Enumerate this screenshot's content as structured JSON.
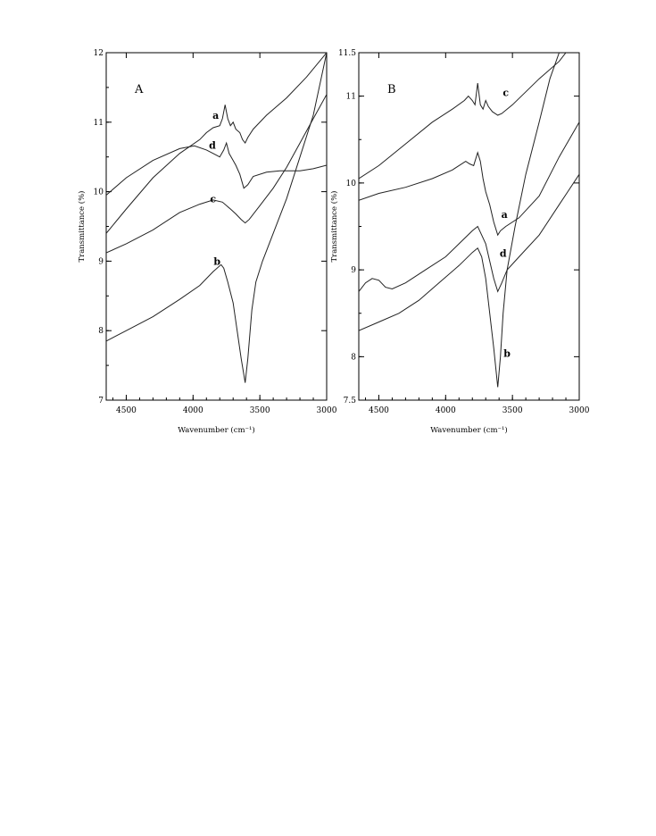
{
  "chart_data": [
    {
      "type": "line",
      "panel_label": "A",
      "xlabel": "Wavenumber (cm⁻¹)",
      "ylabel": "Transmittance (%)",
      "xlim": [
        4650,
        3000
      ],
      "ylim": [
        7,
        12
      ],
      "x_ticks": [
        4500,
        4000,
        3500,
        3000
      ],
      "y_ticks": [
        7,
        8,
        9,
        10,
        11,
        12
      ],
      "grid": false,
      "series": [
        {
          "name": "a",
          "label_at": [
            3830,
            11.05
          ],
          "points": [
            [
              4650,
              9.4
            ],
            [
              4500,
              9.75
            ],
            [
              4300,
              10.2
            ],
            [
              4100,
              10.55
            ],
            [
              3950,
              10.75
            ],
            [
              3900,
              10.85
            ],
            [
              3850,
              10.92
            ],
            [
              3800,
              10.95
            ],
            [
              3780,
              11.05
            ],
            [
              3760,
              11.25
            ],
            [
              3740,
              11.05
            ],
            [
              3720,
              10.95
            ],
            [
              3700,
              11.0
            ],
            [
              3680,
              10.9
            ],
            [
              3650,
              10.85
            ],
            [
              3630,
              10.75
            ],
            [
              3610,
              10.7
            ],
            [
              3590,
              10.78
            ],
            [
              3550,
              10.9
            ],
            [
              3450,
              11.1
            ],
            [
              3300,
              11.35
            ],
            [
              3150,
              11.65
            ],
            [
              3000,
              12.0
            ]
          ]
        },
        {
          "name": "b",
          "label_at": [
            3820,
            8.95
          ],
          "points": [
            [
              4650,
              7.85
            ],
            [
              4500,
              8.0
            ],
            [
              4300,
              8.2
            ],
            [
              4100,
              8.45
            ],
            [
              3950,
              8.65
            ],
            [
              3850,
              8.85
            ],
            [
              3790,
              8.95
            ],
            [
              3770,
              8.9
            ],
            [
              3740,
              8.7
            ],
            [
              3700,
              8.4
            ],
            [
              3670,
              8.0
            ],
            [
              3640,
              7.6
            ],
            [
              3610,
              7.25
            ],
            [
              3590,
              7.6
            ],
            [
              3560,
              8.3
            ],
            [
              3530,
              8.7
            ],
            [
              3480,
              9.0
            ],
            [
              3400,
              9.4
            ],
            [
              3300,
              9.9
            ],
            [
              3200,
              10.5
            ],
            [
              3100,
              11.1
            ],
            [
              3000,
              12.0
            ]
          ]
        },
        {
          "name": "c",
          "label_at": [
            3850,
            9.85
          ],
          "points": [
            [
              4650,
              9.12
            ],
            [
              4500,
              9.25
            ],
            [
              4300,
              9.45
            ],
            [
              4100,
              9.7
            ],
            [
              3950,
              9.82
            ],
            [
              3850,
              9.88
            ],
            [
              3780,
              9.85
            ],
            [
              3720,
              9.75
            ],
            [
              3680,
              9.68
            ],
            [
              3640,
              9.6
            ],
            [
              3610,
              9.55
            ],
            [
              3580,
              9.6
            ],
            [
              3500,
              9.8
            ],
            [
              3400,
              10.05
            ],
            [
              3300,
              10.35
            ],
            [
              3200,
              10.7
            ],
            [
              3100,
              11.05
            ],
            [
              3000,
              11.4
            ]
          ]
        },
        {
          "name": "d",
          "label_at": [
            3855,
            10.62
          ],
          "points": [
            [
              4650,
              9.95
            ],
            [
              4500,
              10.2
            ],
            [
              4300,
              10.45
            ],
            [
              4100,
              10.62
            ],
            [
              3990,
              10.66
            ],
            [
              3900,
              10.6
            ],
            [
              3850,
              10.55
            ],
            [
              3800,
              10.5
            ],
            [
              3770,
              10.6
            ],
            [
              3750,
              10.7
            ],
            [
              3730,
              10.55
            ],
            [
              3700,
              10.45
            ],
            [
              3680,
              10.38
            ],
            [
              3650,
              10.25
            ],
            [
              3620,
              10.05
            ],
            [
              3590,
              10.1
            ],
            [
              3550,
              10.22
            ],
            [
              3450,
              10.28
            ],
            [
              3350,
              10.3
            ],
            [
              3200,
              10.3
            ],
            [
              3100,
              10.33
            ],
            [
              3000,
              10.38
            ]
          ]
        }
      ]
    },
    {
      "type": "line",
      "panel_label": "B",
      "xlabel": "Wavenumber (cm⁻¹)",
      "ylabel": "Transmittance (%)",
      "xlim": [
        4650,
        3000
      ],
      "ylim": [
        7.5,
        11.5
      ],
      "x_ticks": [
        4500,
        4000,
        3500,
        3000
      ],
      "y_ticks": [
        7.5,
        8,
        9,
        10,
        11,
        11.5
      ],
      "grid": false,
      "series": [
        {
          "name": "a",
          "label_at": [
            3560,
            9.6
          ],
          "points": [
            [
              4650,
              9.8
            ],
            [
              4500,
              9.88
            ],
            [
              4300,
              9.95
            ],
            [
              4100,
              10.05
            ],
            [
              3950,
              10.15
            ],
            [
              3850,
              10.25
            ],
            [
              3820,
              10.22
            ],
            [
              3790,
              10.2
            ],
            [
              3760,
              10.35
            ],
            [
              3740,
              10.25
            ],
            [
              3720,
              10.05
            ],
            [
              3700,
              9.9
            ],
            [
              3670,
              9.75
            ],
            [
              3640,
              9.55
            ],
            [
              3610,
              9.4
            ],
            [
              3590,
              9.45
            ],
            [
              3550,
              9.5
            ],
            [
              3450,
              9.6
            ],
            [
              3300,
              9.85
            ],
            [
              3150,
              10.3
            ],
            [
              3000,
              10.7
            ]
          ]
        },
        {
          "name": "b",
          "label_at": [
            3540,
            8.0
          ],
          "points": [
            [
              4650,
              8.3
            ],
            [
              4500,
              8.4
            ],
            [
              4350,
              8.5
            ],
            [
              4200,
              8.65
            ],
            [
              4050,
              8.85
            ],
            [
              3900,
              9.05
            ],
            [
              3800,
              9.2
            ],
            [
              3760,
              9.25
            ],
            [
              3730,
              9.15
            ],
            [
              3700,
              8.9
            ],
            [
              3670,
              8.5
            ],
            [
              3640,
              8.1
            ],
            [
              3610,
              7.65
            ],
            [
              3590,
              8.0
            ],
            [
              3570,
              8.5
            ],
            [
              3540,
              9.0
            ],
            [
              3480,
              9.5
            ],
            [
              3400,
              10.1
            ],
            [
              3300,
              10.7
            ],
            [
              3220,
              11.2
            ],
            [
              3150,
              11.5
            ]
          ]
        },
        {
          "name": "c",
          "label_at": [
            3550,
            11.0
          ],
          "points": [
            [
              4650,
              10.05
            ],
            [
              4500,
              10.2
            ],
            [
              4300,
              10.45
            ],
            [
              4100,
              10.7
            ],
            [
              3950,
              10.85
            ],
            [
              3860,
              10.95
            ],
            [
              3830,
              11.0
            ],
            [
              3800,
              10.95
            ],
            [
              3780,
              10.9
            ],
            [
              3760,
              11.15
            ],
            [
              3740,
              10.9
            ],
            [
              3720,
              10.85
            ],
            [
              3700,
              10.95
            ],
            [
              3680,
              10.88
            ],
            [
              3650,
              10.82
            ],
            [
              3610,
              10.78
            ],
            [
              3580,
              10.8
            ],
            [
              3500,
              10.9
            ],
            [
              3400,
              11.05
            ],
            [
              3300,
              11.2
            ],
            [
              3150,
              11.4
            ],
            [
              3100,
              11.5
            ]
          ]
        },
        {
          "name": "d",
          "label_at": [
            3570,
            9.15
          ],
          "points": [
            [
              4650,
              8.75
            ],
            [
              4600,
              8.85
            ],
            [
              4550,
              8.9
            ],
            [
              4500,
              8.88
            ],
            [
              4450,
              8.8
            ],
            [
              4400,
              8.78
            ],
            [
              4300,
              8.85
            ],
            [
              4150,
              9.0
            ],
            [
              4000,
              9.15
            ],
            [
              3900,
              9.3
            ],
            [
              3800,
              9.45
            ],
            [
              3760,
              9.5
            ],
            [
              3730,
              9.4
            ],
            [
              3700,
              9.3
            ],
            [
              3670,
              9.1
            ],
            [
              3640,
              8.9
            ],
            [
              3610,
              8.75
            ],
            [
              3580,
              8.85
            ],
            [
              3540,
              9.0
            ],
            [
              3450,
              9.15
            ],
            [
              3300,
              9.4
            ],
            [
              3150,
              9.75
            ],
            [
              3000,
              10.1
            ]
          ]
        }
      ]
    }
  ]
}
